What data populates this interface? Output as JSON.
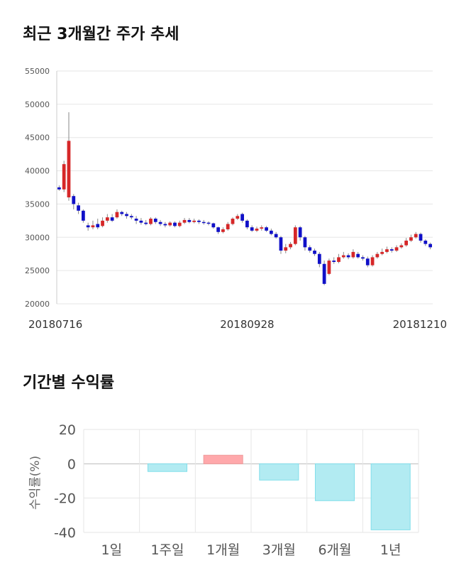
{
  "titles": {
    "trend": "최근 3개월간 주가 추세",
    "returns": "기간별 수익률"
  },
  "chart_data": [
    {
      "type": "candlestick",
      "ylim": [
        20000,
        55000
      ],
      "yticks": [
        20000,
        25000,
        30000,
        35000,
        40000,
        45000,
        50000,
        55000
      ],
      "xtick_labels": [
        "20180716",
        "20180928",
        "20181210"
      ],
      "grid": true,
      "colors": {
        "up": "#d62728",
        "down": "#1010c8",
        "wick": "#888888"
      },
      "candles": [
        [
          37500,
          37200,
          37800,
          37000
        ],
        [
          37200,
          41000,
          41500,
          36800
        ],
        [
          36000,
          44500,
          48800,
          35500
        ],
        [
          36200,
          35000,
          36500,
          34200
        ],
        [
          34800,
          34000,
          35200,
          33500
        ],
        [
          34000,
          32500,
          34200,
          32200
        ],
        [
          31800,
          31500,
          32200,
          31000
        ],
        [
          31500,
          31800,
          32500,
          31200
        ],
        [
          32000,
          31500,
          32800,
          31200
        ],
        [
          31700,
          32500,
          33000,
          31500
        ],
        [
          32500,
          33000,
          33500,
          32200
        ],
        [
          33000,
          32500,
          33500,
          32300
        ],
        [
          33000,
          33800,
          34200,
          32800
        ],
        [
          33800,
          33500,
          34000,
          33200
        ],
        [
          33500,
          33200,
          33800,
          32800
        ],
        [
          33200,
          33000,
          33500,
          32700
        ],
        [
          32800,
          32500,
          33200,
          32000
        ],
        [
          32500,
          32200,
          32900,
          31900
        ],
        [
          32200,
          32000,
          32600,
          31800
        ],
        [
          32000,
          32800,
          33000,
          31800
        ],
        [
          32800,
          32300,
          33000,
          32000
        ],
        [
          32300,
          32000,
          32600,
          31700
        ],
        [
          32000,
          31800,
          32300,
          31500
        ],
        [
          31800,
          32200,
          32400,
          31600
        ],
        [
          32200,
          31700,
          32400,
          31500
        ],
        [
          31700,
          32200,
          32500,
          31500
        ],
        [
          32200,
          32600,
          32900,
          32000
        ],
        [
          32600,
          32300,
          32900,
          32100
        ],
        [
          32300,
          32500,
          32800,
          32100
        ],
        [
          32500,
          32300,
          32700,
          32000
        ],
        [
          32300,
          32200,
          32600,
          31900
        ],
        [
          32200,
          32100,
          32400,
          31800
        ],
        [
          32100,
          31500,
          32200,
          31300
        ],
        [
          31500,
          30800,
          31600,
          30500
        ],
        [
          30800,
          31200,
          31500,
          30600
        ],
        [
          31200,
          32000,
          32300,
          31000
        ],
        [
          32000,
          32800,
          33000,
          31800
        ],
        [
          32800,
          33200,
          33500,
          32600
        ],
        [
          33500,
          32500,
          33700,
          32200
        ],
        [
          32500,
          31500,
          32700,
          31200
        ],
        [
          31500,
          31000,
          31800,
          30800
        ],
        [
          31000,
          31300,
          31600,
          30800
        ],
        [
          31300,
          31500,
          31800,
          31000
        ],
        [
          31500,
          31000,
          31700,
          30800
        ],
        [
          31000,
          30500,
          31300,
          30300
        ],
        [
          30500,
          30000,
          30800,
          29800
        ],
        [
          30000,
          28000,
          30200,
          27500
        ],
        [
          28000,
          28500,
          29000,
          27600
        ],
        [
          28500,
          29000,
          29300,
          28200
        ],
        [
          29000,
          31500,
          31800,
          28800
        ],
        [
          31500,
          30000,
          31700,
          29500
        ],
        [
          30000,
          28500,
          30200,
          28000
        ],
        [
          28500,
          28000,
          28800,
          27700
        ],
        [
          28000,
          27500,
          28300,
          27200
        ],
        [
          27500,
          26000,
          27800,
          25500
        ],
        [
          26000,
          23000,
          26500,
          22800
        ],
        [
          24500,
          26500,
          26800,
          24300
        ],
        [
          26500,
          26300,
          27000,
          26000
        ],
        [
          26300,
          27000,
          27500,
          26100
        ],
        [
          27000,
          27300,
          27800,
          26800
        ],
        [
          27300,
          27000,
          27600,
          26700
        ],
        [
          27000,
          27800,
          28200,
          26800
        ],
        [
          27500,
          27000,
          27800,
          26800
        ],
        [
          27000,
          26800,
          27300,
          26500
        ],
        [
          26800,
          25800,
          27100,
          25500
        ],
        [
          25800,
          27000,
          27300,
          25600
        ],
        [
          27000,
          27500,
          27800,
          26800
        ],
        [
          27500,
          27800,
          28300,
          27300
        ],
        [
          27800,
          28200,
          28600,
          27600
        ],
        [
          28200,
          28000,
          28500,
          27700
        ],
        [
          28000,
          28500,
          28800,
          27800
        ],
        [
          28500,
          28800,
          29100,
          28300
        ],
        [
          28800,
          29500,
          29900,
          28600
        ],
        [
          29500,
          30000,
          30400,
          29300
        ],
        [
          30000,
          30500,
          30800,
          29800
        ],
        [
          30500,
          29500,
          30700,
          29200
        ],
        [
          29500,
          29000,
          29700,
          28700
        ],
        [
          29000,
          28500,
          29200,
          28200
        ]
      ]
    },
    {
      "type": "bar",
      "categories": [
        "1일",
        "1주일",
        "1개월",
        "3개월",
        "6개월",
        "1년"
      ],
      "values": [
        0,
        -4.5,
        5.0,
        -9.5,
        -21.5,
        -38.5
      ],
      "ylabel": "수익률(%)",
      "ylim": [
        -40,
        20
      ],
      "yticks": [
        20,
        0,
        -20,
        -40
      ],
      "grid": true,
      "colors": {
        "positive": "#ffa8ab",
        "negative": "#b2ebf2",
        "positive_edge": "#ef9a9a",
        "negative_edge": "#80deea"
      }
    }
  ]
}
